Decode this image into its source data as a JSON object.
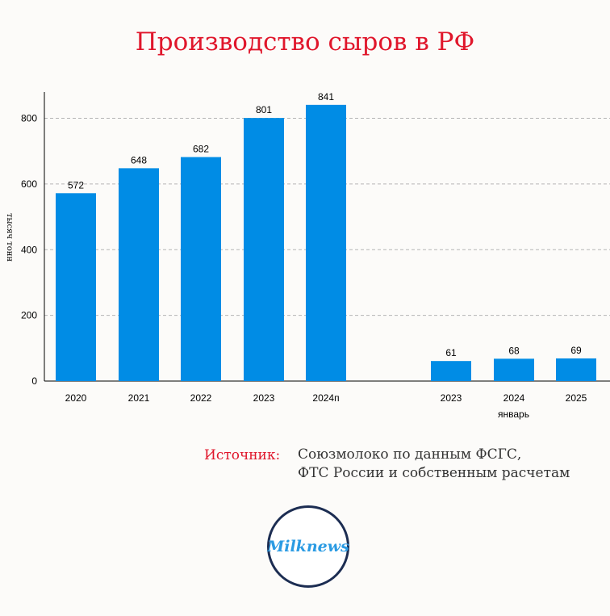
{
  "title": "Производство сыров в РФ",
  "chart_data": {
    "type": "bar",
    "ylabel": "тысяч тонн",
    "ylim": [
      0,
      880
    ],
    "yticks": [
      0,
      200,
      400,
      600,
      800
    ],
    "grid": true,
    "bar_color": "#008ce5",
    "groups": [
      {
        "label": "",
        "categories": [
          "2020",
          "2021",
          "2022",
          "2023",
          "2024п"
        ],
        "values": [
          572,
          648,
          682,
          801,
          841
        ]
      },
      {
        "label": "январь",
        "categories": [
          "2023",
          "2024",
          "2025"
        ],
        "values": [
          61,
          68,
          69
        ]
      }
    ]
  },
  "source": {
    "label": "Источник:",
    "line1": "Союзмолоко по данным ФСГС,",
    "line2": "ФТС России и собственным расчетам"
  },
  "logo": {
    "text": "Milknews",
    "color": "#2b9be3",
    "border_color": "#1c2d52"
  }
}
